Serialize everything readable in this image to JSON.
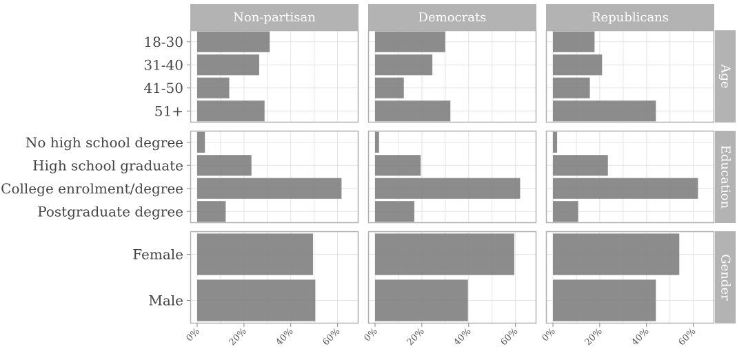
{
  "chart_data": {
    "type": "bar",
    "orientation": "horizontal",
    "grid": true,
    "x_ticks": [
      "0%",
      "20%",
      "40%",
      "60%"
    ],
    "xlim": [
      0,
      0.66
    ],
    "columns": [
      "Non-partisan",
      "Democrats",
      "Republicans"
    ],
    "rows": [
      {
        "label": "Age",
        "categories": [
          "18-30",
          "31-40",
          "41-50",
          "51+"
        ]
      },
      {
        "label": "Education",
        "categories": [
          "No high school degree",
          "High school graduate",
          "College enrolment/degree",
          "Postgraduate degree"
        ]
      },
      {
        "label": "Gender",
        "categories": [
          "Female",
          "Male"
        ]
      }
    ],
    "values": {
      "Non-partisan": {
        "Age": [
          0.31,
          0.265,
          0.137,
          0.288
        ],
        "Education": [
          0.033,
          0.232,
          0.617,
          0.122
        ],
        "Gender": [
          0.495,
          0.505
        ]
      },
      "Democrats": {
        "Age": [
          0.3,
          0.245,
          0.123,
          0.322
        ],
        "Education": [
          0.017,
          0.195,
          0.62,
          0.168
        ],
        "Gender": [
          0.595,
          0.397
        ]
      },
      "Republicans": {
        "Age": [
          0.178,
          0.21,
          0.158,
          0.44
        ],
        "Education": [
          0.018,
          0.235,
          0.62,
          0.108
        ],
        "Gender": [
          0.54,
          0.44
        ]
      }
    },
    "colors": {
      "bar": "#7f7f7f",
      "strip": "#b3b3b3",
      "panel_border": "#b0b0b0",
      "grid": "#e3e3e3"
    }
  }
}
